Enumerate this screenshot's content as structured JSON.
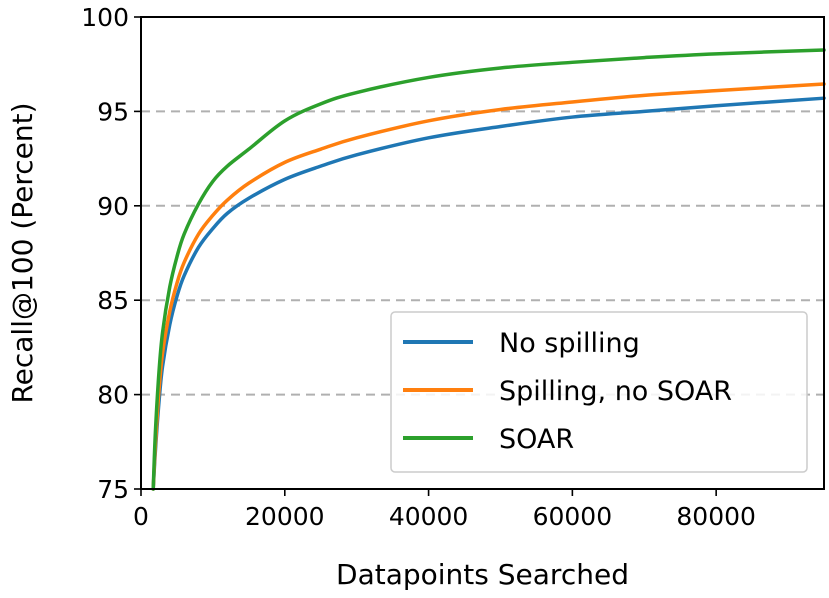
{
  "chart_data": {
    "type": "line",
    "xlabel": "Datapoints Searched",
    "ylabel": "Recall@100 (Percent)",
    "xlim": [
      0,
      95000
    ],
    "ylim": [
      75,
      100
    ],
    "xticks": [
      0,
      20000,
      40000,
      60000,
      80000
    ],
    "yticks": [
      75,
      80,
      85,
      90,
      95,
      100
    ],
    "grid": "horizontal dashed at 80, 85, 90, 95",
    "legend_position": "lower-right",
    "series": [
      {
        "name": "No spilling",
        "color": "#1f77b4",
        "x": [
          1700,
          2000,
          2500,
          3000,
          4000,
          5000,
          6000,
          8000,
          10000,
          12000,
          15000,
          20000,
          25000,
          30000,
          40000,
          50000,
          60000,
          70000,
          80000,
          95000
        ],
        "y": [
          75,
          77,
          79.6,
          81.5,
          83.7,
          85.2,
          86.3,
          87.8,
          88.8,
          89.6,
          90.4,
          91.4,
          92.1,
          92.7,
          93.6,
          94.2,
          94.7,
          95.0,
          95.3,
          95.7
        ]
      },
      {
        "name": "Spilling, no SOAR",
        "color": "#ff7f0e",
        "x": [
          1700,
          2000,
          2500,
          3000,
          4000,
          5000,
          6000,
          8000,
          10000,
          12000,
          15000,
          20000,
          25000,
          30000,
          40000,
          50000,
          60000,
          70000,
          80000,
          95000
        ],
        "y": [
          75,
          77.3,
          80.2,
          82.2,
          84.4,
          85.9,
          87.0,
          88.5,
          89.5,
          90.3,
          91.2,
          92.3,
          93.0,
          93.6,
          94.5,
          95.1,
          95.5,
          95.85,
          96.1,
          96.45
        ]
      },
      {
        "name": "SOAR",
        "color": "#2ca02c",
        "x": [
          1700,
          2000,
          2500,
          3000,
          4000,
          5000,
          6000,
          8000,
          10000,
          12000,
          15000,
          20000,
          25000,
          30000,
          40000,
          50000,
          60000,
          70000,
          80000,
          95000
        ],
        "y": [
          75,
          78,
          81.2,
          83.3,
          85.7,
          87.3,
          88.5,
          90.1,
          91.3,
          92.1,
          93.0,
          94.5,
          95.4,
          96.0,
          96.8,
          97.3,
          97.6,
          97.85,
          98.05,
          98.25
        ]
      }
    ]
  }
}
